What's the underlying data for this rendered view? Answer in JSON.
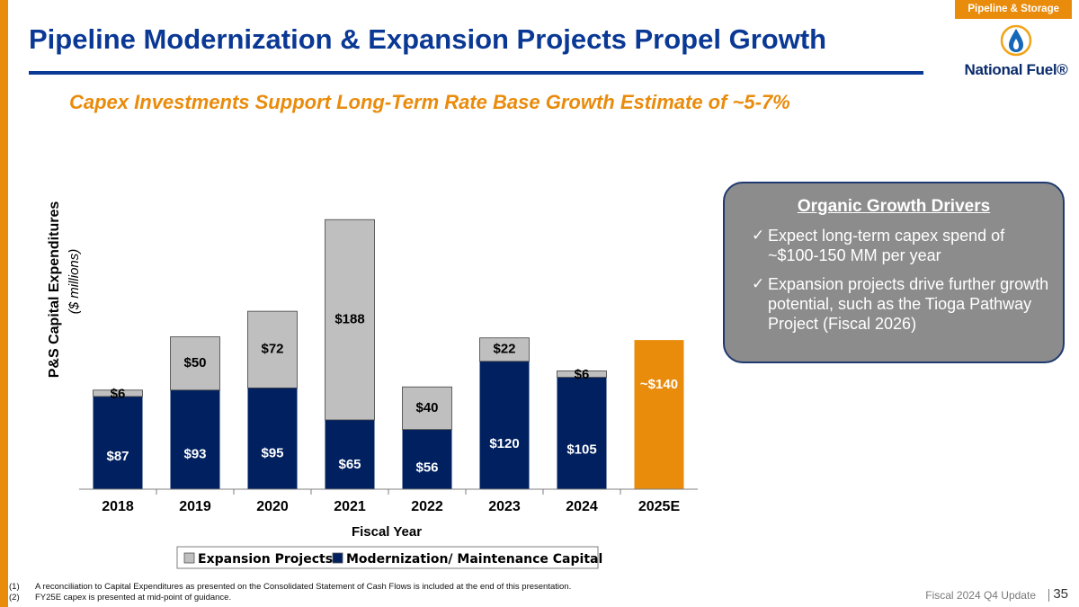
{
  "section_tag": "Pipeline & Storage",
  "title": "Pipeline Modernization & Expansion Projects Propel Growth",
  "subtitle": "Capex Investments Support Long-Term Rate Base Growth Estimate of ~5-7%",
  "logo": {
    "text": "National Fuel®",
    "icon": "flame-drop-icon"
  },
  "callout": {
    "title": "Organic Growth Drivers",
    "items": [
      "Expect long-term capex spend of ~$100-150 MM per year",
      "Expansion projects drive further growth potential, such as the Tioga Pathway Project (Fiscal 2026)"
    ]
  },
  "chart_data": {
    "type": "bar",
    "stacked": true,
    "categories": [
      "2018",
      "2019",
      "2020",
      "2021",
      "2022",
      "2023",
      "2024",
      "2025E"
    ],
    "series": [
      {
        "name": "Modernization/ Maintenance Capital",
        "values": [
          87,
          93,
          95,
          65,
          56,
          120,
          105,
          null
        ],
        "labels": [
          "$87",
          "$93",
          "$95",
          "$65",
          "$56",
          "$120",
          "$105",
          ""
        ],
        "color": "#002060"
      },
      {
        "name": "Expansion Projects",
        "values": [
          6,
          50,
          72,
          188,
          40,
          22,
          6,
          null
        ],
        "labels": [
          "$6",
          "$50",
          "$72",
          "$188",
          "$40",
          "$22",
          "$6",
          ""
        ],
        "color": "#bfbfbf"
      },
      {
        "name": "FY25E guidance mid-point",
        "values": [
          null,
          null,
          null,
          null,
          null,
          null,
          null,
          140
        ],
        "labels": [
          "",
          "",
          "",
          "",
          "",
          "",
          "",
          "~$140"
        ],
        "color": "#e98b0b"
      }
    ],
    "legend": [
      "Expansion Projects",
      "Modernization/ Maintenance Capital"
    ],
    "xlabel": "Fiscal Year",
    "ylabel": "P&S Capital Expenditures",
    "ylabel_sub": "($ millions)",
    "ylim": [
      0,
      260
    ]
  },
  "footnotes": [
    {
      "num": "(1)",
      "text": "A reconciliation to Capital Expenditures as presented on the Consolidated Statement of Cash Flows is included at the end of this presentation."
    },
    {
      "num": "(2)",
      "text": "FY25E capex is presented at mid-point of guidance."
    }
  ],
  "footer": {
    "label": "Fiscal 2024 Q4 Update",
    "page": "35"
  }
}
